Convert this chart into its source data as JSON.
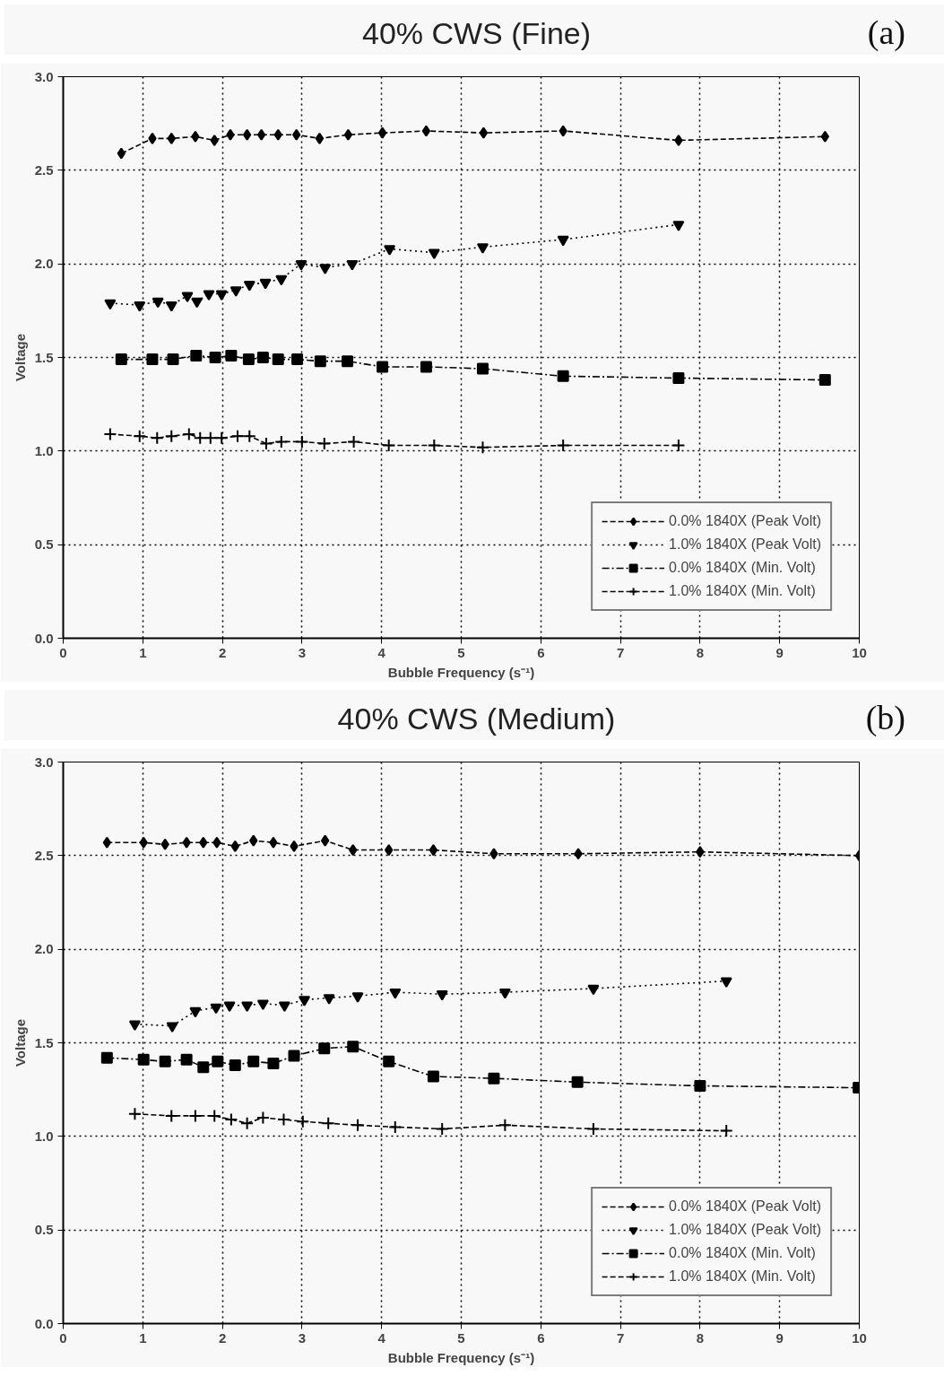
{
  "chart_data": [
    {
      "type": "line",
      "title": "40% CWS (Fine)",
      "annotations": [
        "(a)"
      ],
      "xlabel": "Bubble Frequency (s⁻¹)",
      "ylabel": "Voltage",
      "xlim": [
        0,
        10
      ],
      "ylim": [
        0,
        3
      ],
      "xticks": [
        0,
        1,
        2,
        3,
        4,
        5,
        6,
        7,
        8,
        9,
        10
      ],
      "yticks": [
        {
          "value": 0,
          "label": "0.0"
        },
        {
          "value": 0.5,
          "label": "0.5"
        },
        {
          "value": 1,
          "label": "1.0"
        },
        {
          "value": 1.5,
          "label": "1.5"
        },
        {
          "value": 2,
          "label": "2.0"
        },
        {
          "value": 2.5,
          "label": "2.5"
        },
        {
          "value": 3,
          "label": "3.0"
        }
      ],
      "grid": true,
      "legend": "bottom right",
      "series": [
        {
          "name": "0.0% 1840X (Peak Volt)",
          "color": "#000000",
          "marker": "diamond",
          "line_style": "dashed",
          "x": [
            0.73,
            1.12,
            1.36,
            1.66,
            1.9,
            2.1,
            2.31,
            2.49,
            2.7,
            2.93,
            3.22,
            3.58,
            4.01,
            4.56,
            5.28,
            6.28,
            7.73,
            9.57
          ],
          "values": [
            2.59,
            2.67,
            2.67,
            2.68,
            2.66,
            2.69,
            2.69,
            2.69,
            2.69,
            2.69,
            2.67,
            2.69,
            2.7,
            2.71,
            2.7,
            2.71,
            2.66,
            2.68
          ]
        },
        {
          "name": "1.0% 1840X (Peak Volt)",
          "color": "#000000",
          "marker": "triangle",
          "line_style": "dotted",
          "x": [
            0.59,
            0.96,
            1.19,
            1.36,
            1.56,
            1.68,
            1.83,
            1.99,
            2.17,
            2.34,
            2.54,
            2.74,
            2.99,
            3.29,
            3.63,
            4.1,
            4.66,
            5.27,
            6.28,
            7.73
          ],
          "values": [
            1.79,
            1.78,
            1.8,
            1.78,
            1.83,
            1.8,
            1.84,
            1.84,
            1.86,
            1.89,
            1.9,
            1.92,
            2.0,
            1.98,
            2.0,
            2.08,
            2.06,
            2.09,
            2.13,
            2.21
          ]
        },
        {
          "name": "0.0% 1840X (Min. Volt)",
          "color": "#000000",
          "marker": "square",
          "line_style": "dashdot",
          "x": [
            0.73,
            1.12,
            1.38,
            1.67,
            1.91,
            2.11,
            2.33,
            2.51,
            2.7,
            2.94,
            3.23,
            3.57,
            4.01,
            4.56,
            5.27,
            6.28,
            7.73,
            9.57
          ],
          "values": [
            1.49,
            1.49,
            1.49,
            1.51,
            1.5,
            1.51,
            1.49,
            1.5,
            1.49,
            1.49,
            1.48,
            1.48,
            1.45,
            1.45,
            1.44,
            1.4,
            1.39,
            1.38
          ]
        },
        {
          "name": "1.0% 1840X (Min. Volt)",
          "color": "#000000",
          "marker": "cross",
          "line_style": "dashed",
          "x": [
            0.59,
            0.96,
            1.18,
            1.36,
            1.58,
            1.72,
            1.85,
            1.99,
            2.19,
            2.34,
            2.55,
            2.74,
            3.0,
            3.28,
            3.65,
            4.09,
            4.66,
            5.27,
            6.28,
            7.73
          ],
          "values": [
            1.09,
            1.08,
            1.07,
            1.08,
            1.09,
            1.07,
            1.07,
            1.07,
            1.08,
            1.08,
            1.04,
            1.05,
            1.05,
            1.04,
            1.05,
            1.03,
            1.03,
            1.02,
            1.03,
            1.03
          ]
        }
      ]
    },
    {
      "type": "line",
      "title": "40% CWS (Medium)",
      "annotations": [
        "(b)"
      ],
      "xlabel": "Bubble Frequency (s⁻¹)",
      "ylabel": "Voltage",
      "xlim": [
        0,
        10
      ],
      "ylim": [
        0,
        3
      ],
      "xticks": [
        0,
        1,
        2,
        3,
        4,
        5,
        6,
        7,
        8,
        9,
        10
      ],
      "yticks": [
        {
          "value": 0,
          "label": "0.0"
        },
        {
          "value": 0.5,
          "label": "0.5"
        },
        {
          "value": 1,
          "label": "1.0"
        },
        {
          "value": 1.5,
          "label": "1.5"
        },
        {
          "value": 2,
          "label": "2.0"
        },
        {
          "value": 2.5,
          "label": "2.5"
        },
        {
          "value": 3,
          "label": "3.0"
        }
      ],
      "grid": true,
      "legend": "bottom right",
      "series": [
        {
          "name": "0.0% 1840X (Peak Volt)",
          "color": "#000000",
          "marker": "diamond",
          "line_style": "dashed",
          "x": [
            0.55,
            1.01,
            1.28,
            1.55,
            1.76,
            1.93,
            2.16,
            2.39,
            2.64,
            2.9,
            3.29,
            3.64,
            4.09,
            4.65,
            5.41,
            6.47,
            8.0,
            10.0
          ],
          "values": [
            2.57,
            2.57,
            2.56,
            2.57,
            2.57,
            2.57,
            2.55,
            2.58,
            2.57,
            2.55,
            2.58,
            2.53,
            2.53,
            2.53,
            2.51,
            2.51,
            2.52,
            2.5
          ]
        },
        {
          "name": "1.0% 1840X (Peak Volt)",
          "color": "#000000",
          "marker": "triangle",
          "line_style": "dotted",
          "x": [
            0.9,
            1.37,
            1.66,
            1.92,
            2.09,
            2.31,
            2.51,
            2.78,
            3.03,
            3.34,
            3.7,
            4.17,
            4.76,
            5.55,
            6.66,
            8.33
          ],
          "values": [
            1.6,
            1.59,
            1.67,
            1.69,
            1.7,
            1.7,
            1.71,
            1.7,
            1.73,
            1.74,
            1.75,
            1.77,
            1.76,
            1.77,
            1.79,
            1.83
          ]
        },
        {
          "name": "0.0% 1840X (Min. Volt)",
          "color": "#000000",
          "marker": "square",
          "line_style": "dashdot",
          "x": [
            0.55,
            1.01,
            1.28,
            1.55,
            1.76,
            1.94,
            2.16,
            2.39,
            2.64,
            2.9,
            3.28,
            3.64,
            4.09,
            4.65,
            5.41,
            6.46,
            8.0,
            9.99
          ],
          "values": [
            1.42,
            1.41,
            1.4,
            1.41,
            1.37,
            1.4,
            1.38,
            1.4,
            1.39,
            1.43,
            1.47,
            1.48,
            1.4,
            1.32,
            1.31,
            1.29,
            1.27,
            1.26
          ]
        },
        {
          "name": "1.0% 1840X (Min. Volt)",
          "color": "#000000",
          "marker": "cross",
          "line_style": "dashed",
          "x": [
            0.9,
            1.36,
            1.66,
            1.9,
            2.11,
            2.31,
            2.51,
            2.77,
            3.01,
            3.33,
            3.7,
            4.17,
            4.76,
            5.55,
            6.66,
            8.33
          ],
          "values": [
            1.12,
            1.11,
            1.11,
            1.11,
            1.09,
            1.07,
            1.1,
            1.09,
            1.08,
            1.07,
            1.06,
            1.05,
            1.04,
            1.06,
            1.04,
            1.03
          ]
        }
      ]
    }
  ]
}
